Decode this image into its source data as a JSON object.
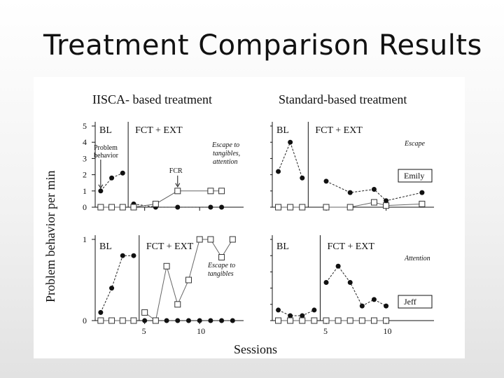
{
  "slide": {
    "title": "Treatment Comparison Results"
  },
  "figure": {
    "panel_titles": [
      "IISCA- based treatment",
      "Standard-based treatment"
    ],
    "y_axis_label": "Problem behavior per min",
    "x_axis_label": "Sessions"
  },
  "chart_data": [
    {
      "type": "line",
      "id": "iisca-top",
      "title": "IISCA- based treatment",
      "phases": [
        "BL",
        "FCT + EXT"
      ],
      "phase_change_after": 3.5,
      "xlim": [
        0.5,
        14
      ],
      "ylim": [
        0,
        5
      ],
      "yticks": [
        0,
        1,
        2,
        3,
        4,
        5
      ],
      "ytick_labels": [
        "0",
        "1",
        "2",
        "3",
        "4",
        "5"
      ],
      "xticks": [
        5,
        10
      ],
      "xtick_labels": [
        "",
        ""
      ],
      "annotations": [
        "Problem behavior",
        "FCR"
      ],
      "condition_note": "Escape to tangibles, attention",
      "series": [
        {
          "name": "Problem behavior",
          "marker": "filled-circle",
          "connect_break_at_phase": true,
          "x": [
            1,
            2,
            3,
            4,
            6,
            8,
            11,
            12
          ],
          "y": [
            1.0,
            1.8,
            2.1,
            0.2,
            0.0,
            0.0,
            0.0,
            0.0
          ]
        },
        {
          "name": "FCR",
          "marker": "open-square",
          "connect_break_at_phase": true,
          "x": [
            1,
            2,
            3,
            4,
            6,
            8,
            11,
            12
          ],
          "y": [
            0.0,
            0.0,
            0.0,
            0.0,
            0.2,
            1.0,
            1.0,
            1.0
          ]
        }
      ]
    },
    {
      "type": "line",
      "id": "standard-top",
      "title": "Standard-based treatment",
      "phases": [
        "BL",
        "FCT + EXT"
      ],
      "phase_change_after": 3.5,
      "xlim": [
        0.5,
        14
      ],
      "ylim": [
        0,
        5
      ],
      "xticks": [
        5,
        10
      ],
      "xtick_labels": [
        "",
        ""
      ],
      "condition_note": "Escape",
      "participant": "Emily",
      "series": [
        {
          "name": "Problem behavior",
          "marker": "filled-circle",
          "connect_break_at_phase": true,
          "x": [
            1,
            2,
            3,
            5,
            7,
            9,
            10,
            13
          ],
          "y": [
            2.2,
            4.0,
            1.8,
            1.6,
            0.9,
            1.1,
            0.4,
            0.9
          ]
        },
        {
          "name": "FCR",
          "marker": "open-square",
          "connect_break_at_phase": true,
          "x": [
            1,
            2,
            3,
            5,
            7,
            9,
            10,
            13
          ],
          "y": [
            0.0,
            0.0,
            0.0,
            0.0,
            0.0,
            0.3,
            0.1,
            0.2
          ]
        }
      ]
    },
    {
      "type": "line",
      "id": "iisca-bottom",
      "phases": [
        "BL",
        "FCT + EXT"
      ],
      "phase_change_after": 4.5,
      "xlim": [
        0.5,
        14
      ],
      "ylim": [
        0,
        1
      ],
      "yticks": [
        0,
        1
      ],
      "ytick_labels": [
        "0",
        "1"
      ],
      "xticks": [
        5,
        10
      ],
      "xtick_labels": [
        "5",
        "10"
      ],
      "condition_note": "Escape to tangibles",
      "series": [
        {
          "name": "Problem behavior",
          "marker": "filled-circle",
          "connect_break_at_phase": true,
          "x": [
            1,
            2,
            3,
            4,
            5,
            6,
            7,
            8,
            9,
            10,
            11,
            12,
            13
          ],
          "y": [
            0.1,
            0.4,
            0.8,
            0.8,
            0.0,
            0.0,
            0.0,
            0.0,
            0.0,
            0.0,
            0.0,
            0.0,
            0.0
          ]
        },
        {
          "name": "FCR",
          "marker": "open-square",
          "connect_break_at_phase": true,
          "x": [
            1,
            2,
            3,
            4,
            5,
            6,
            7,
            8,
            9,
            10,
            11,
            12,
            13
          ],
          "y": [
            0.0,
            0.0,
            0.0,
            0.0,
            0.1,
            0.0,
            0.67,
            0.2,
            0.5,
            1.0,
            1.0,
            0.78,
            1.0
          ]
        }
      ]
    },
    {
      "type": "line",
      "id": "standard-bottom",
      "phases": [
        "BL",
        "FCT + EXT"
      ],
      "phase_change_after": 4.5,
      "xlim": [
        0.5,
        14
      ],
      "ylim": [
        0,
        1
      ],
      "xticks": [
        5,
        10
      ],
      "xtick_labels": [
        "5",
        "10"
      ],
      "condition_note": "Attention",
      "participant": "Jeff",
      "series": [
        {
          "name": "Problem behavior",
          "marker": "filled-circle",
          "connect_break_at_phase": true,
          "x": [
            1,
            2,
            3,
            4,
            5,
            6,
            7,
            8,
            9,
            10
          ],
          "y": [
            0.13,
            0.06,
            0.06,
            0.13,
            0.47,
            0.67,
            0.47,
            0.18,
            0.26,
            0.18
          ]
        },
        {
          "name": "FCR",
          "marker": "open-square",
          "connect_break_at_phase": true,
          "x": [
            1,
            2,
            3,
            4,
            5,
            6,
            7,
            8,
            9,
            10
          ],
          "y": [
            0.0,
            0.0,
            0.0,
            0.0,
            0.0,
            0.0,
            0.0,
            0.0,
            0.0,
            0.0
          ]
        }
      ]
    }
  ]
}
